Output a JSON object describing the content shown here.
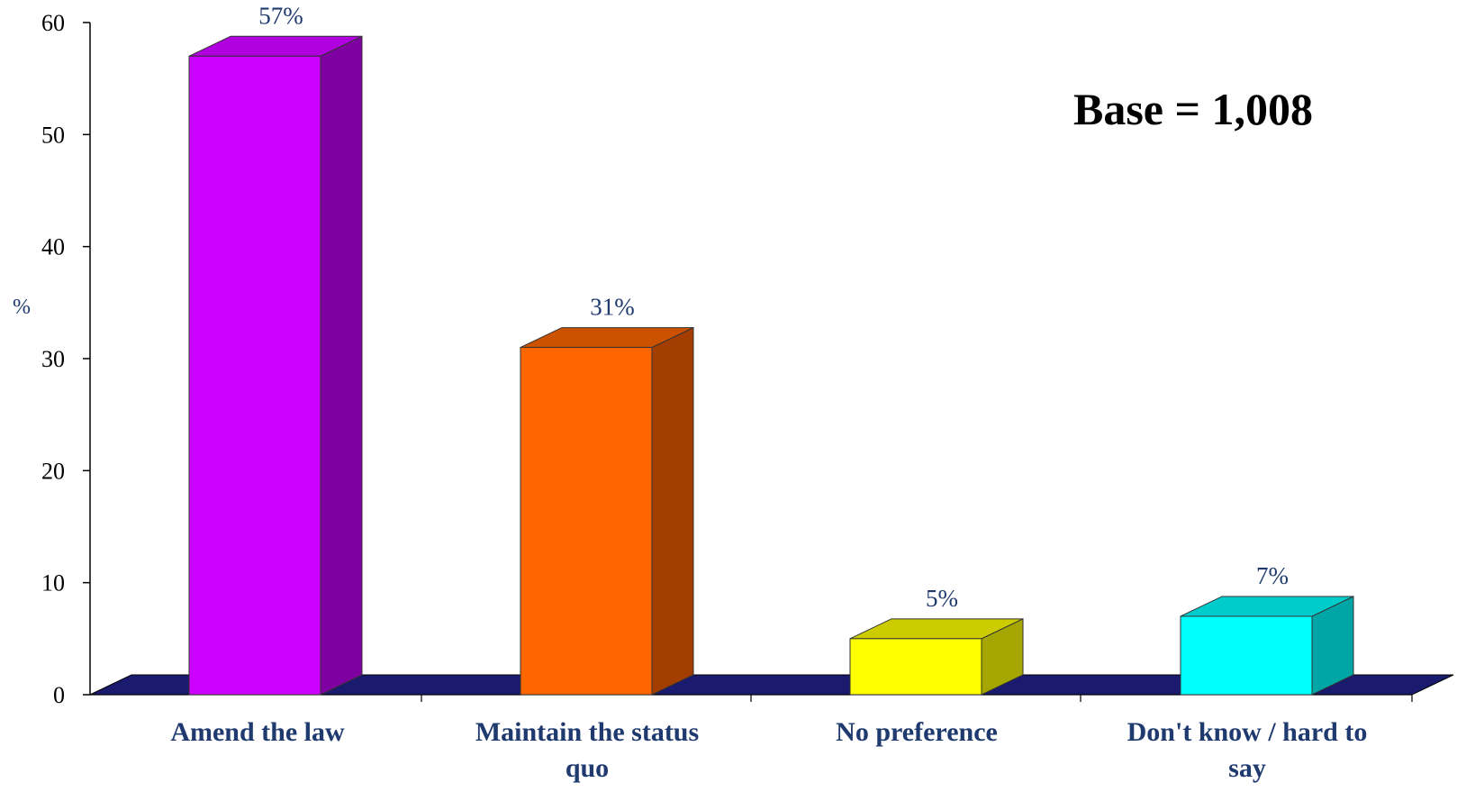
{
  "chart_data": {
    "type": "bar",
    "categories": [
      "Amend the law",
      "Maintain the status quo",
      "No preference",
      "Don't know / hard to say"
    ],
    "category_lines": [
      [
        "Amend the law"
      ],
      [
        "Maintain the status",
        "quo"
      ],
      [
        "No preference"
      ],
      [
        "Don't know / hard to",
        "say"
      ]
    ],
    "values": [
      57,
      31,
      5,
      7
    ],
    "data_labels": [
      "57%",
      "31%",
      "5%",
      "7%"
    ],
    "ylabel": "%",
    "ylim": [
      0,
      60
    ],
    "yticks": [
      0,
      10,
      20,
      30,
      40,
      50,
      60
    ],
    "annotation": "Base = 1,008",
    "grid": false,
    "style": "3d",
    "colors": {
      "bars": [
        {
          "front": "#cc00ff",
          "side": "#7f00a0",
          "top": "#b000e0"
        },
        {
          "front": "#ff6600",
          "side": "#a33d00",
          "top": "#cc5200"
        },
        {
          "front": "#ffff00",
          "side": "#a6a600",
          "top": "#cccc00"
        },
        {
          "front": "#00ffff",
          "side": "#00a6a6",
          "top": "#00cccc"
        }
      ],
      "floor": "#1a1a6e",
      "label_text": "#1f3a6e"
    }
  }
}
